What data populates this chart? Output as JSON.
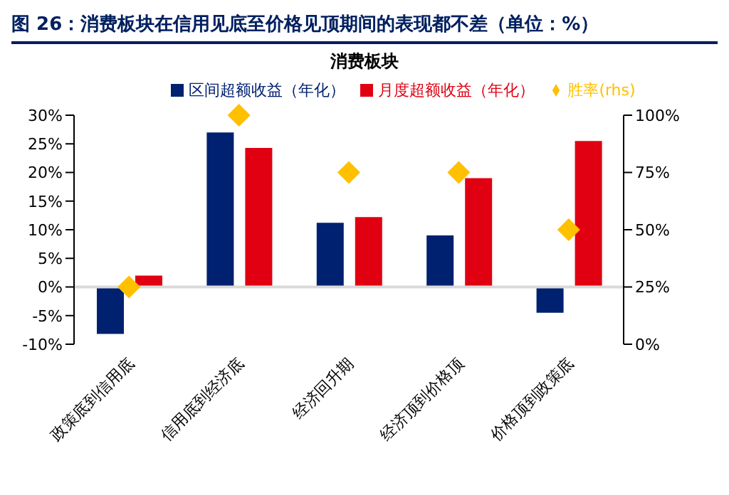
{
  "chart_data": {
    "type": "bar",
    "title": "图 26：消费板块在信用见底至价格见顶期间的表现都不差（单位：%）",
    "subtitle": "消费板块",
    "categories": [
      "政策底到信用底",
      "信用底到经济底",
      "经济回升期",
      "经济顶到价格顶",
      "价格顶到政策底"
    ],
    "series": [
      {
        "name": "区间超额收益（年化）",
        "color": "#002070",
        "values": [
          -8.2,
          27,
          11.2,
          9,
          -4.5
        ]
      },
      {
        "name": "月度超额收益（年化）",
        "color": "#e00012",
        "values": [
          2,
          24.3,
          12.2,
          19,
          25.5
        ]
      },
      {
        "name": "胜率(rhs)",
        "type": "scatter",
        "axis": "y2",
        "marker": "diamond",
        "color": "#ffc000",
        "values": [
          25,
          100,
          75,
          75,
          50
        ]
      }
    ],
    "ylim": [
      -10,
      30
    ],
    "yticks": [
      {
        "value": -10,
        "label": "-10%"
      },
      {
        "value": -5,
        "label": "-5%"
      },
      {
        "value": 0,
        "label": "0%"
      },
      {
        "value": 5,
        "label": "5%"
      },
      {
        "value": 10,
        "label": "10%"
      },
      {
        "value": 15,
        "label": "15%"
      },
      {
        "value": 20,
        "label": "20%"
      },
      {
        "value": 25,
        "label": "25%"
      },
      {
        "value": 30,
        "label": "30%"
      }
    ],
    "y2lim": [
      0,
      100
    ],
    "y2ticks": [
      {
        "value": 0,
        "label": "0%"
      },
      {
        "value": 25,
        "label": "25%"
      },
      {
        "value": 50,
        "label": "50%"
      },
      {
        "value": 75,
        "label": "75%"
      },
      {
        "value": 100,
        "label": "100%"
      }
    ],
    "ref_lines": [
      {
        "axis": "y",
        "value": 0,
        "color": "#d9d9d9"
      }
    ],
    "grid": false,
    "legend": "top"
  }
}
